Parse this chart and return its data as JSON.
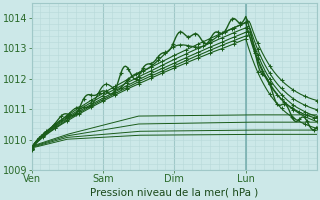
{
  "title": "Pression niveau de la mer( hPa )",
  "ylabel_ticks": [
    1009,
    1010,
    1011,
    1012,
    1013,
    1014
  ],
  "xlabels": [
    "Ven",
    "Sam",
    "Dim",
    "Lun"
  ],
  "xtick_pos": [
    0,
    1,
    2,
    3
  ],
  "background_color": "#cce8e8",
  "grid_minor_color": "#b8d8d8",
  "grid_major_color": "#a0c8c8",
  "line_color": "#1a5c1a",
  "ylim": [
    1009.0,
    1014.5
  ],
  "xlim": [
    0,
    4.0
  ],
  "tick_label_color": "#2a6a2a",
  "title_color": "#1a4a1a",
  "title_fontsize": 7.5,
  "tick_fontsize": 7
}
